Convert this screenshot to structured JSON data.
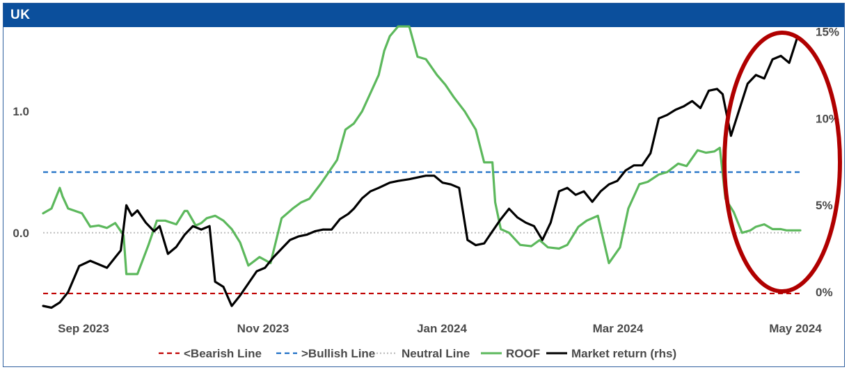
{
  "header": {
    "title": "UK"
  },
  "colors": {
    "header_bg": "#0b4f9c",
    "bearish": "#c00000",
    "bullish": "#1f6fc5",
    "neutral": "#bdbdbd",
    "roof": "#5cb85c",
    "market": "#000000",
    "highlight": "#b00000"
  },
  "chart_data": {
    "type": "line",
    "x_ticks": [
      "Sep 2023",
      "Nov 2023",
      "Jan 2024",
      "Mar 2024",
      "May 2024"
    ],
    "y_left_ticks": [
      "1.0",
      "0.0"
    ],
    "y_left_tick_values": [
      1.0,
      0.0
    ],
    "y_right_ticks": [
      "15%",
      "10%",
      "5%",
      "0%"
    ],
    "y_right_tick_values": [
      15,
      10,
      5,
      0
    ],
    "ylim_left": [
      -0.66,
      1.7
    ],
    "ylim_right": [
      -1.2,
      15.3
    ],
    "grid": false,
    "legend_position": "bottom",
    "reference_lines": [
      {
        "name": "<Bearish Line",
        "value": -0.5,
        "style": "dashed",
        "color": "#c00000"
      },
      {
        "name": ">Bullish Line",
        "value": 0.5,
        "style": "dashed",
        "color": "#1f6fc5"
      },
      {
        "name": "Neutral Line",
        "value": 0.0,
        "style": "dotted",
        "color": "#bdbdbd"
      }
    ],
    "series": [
      {
        "name": "ROOF",
        "axis": "left",
        "color": "#5cb85c",
        "x": [
          "2023-08-15",
          "2023-08-18",
          "2023-08-21",
          "2023-08-22",
          "2023-08-24",
          "2023-08-29",
          "2023-09-01",
          "2023-09-04",
          "2023-09-07",
          "2023-09-10",
          "2023-09-13",
          "2023-09-14",
          "2023-09-18",
          "2023-09-22",
          "2023-09-25",
          "2023-09-28",
          "2023-10-02",
          "2023-10-05",
          "2023-10-06",
          "2023-10-09",
          "2023-10-11",
          "2023-10-13",
          "2023-10-16",
          "2023-10-19",
          "2023-10-22",
          "2023-10-25",
          "2023-10-28",
          "2023-11-01",
          "2023-11-05",
          "2023-11-09",
          "2023-11-13",
          "2023-11-16",
          "2023-11-19",
          "2023-11-23",
          "2023-11-26",
          "2023-11-29",
          "2023-12-02",
          "2023-12-05",
          "2023-12-08",
          "2023-12-11",
          "2023-12-14",
          "2023-12-16",
          "2023-12-18",
          "2023-12-21",
          "2023-12-25",
          "2023-12-28",
          "2023-12-31",
          "2024-01-04",
          "2024-01-07",
          "2024-01-10",
          "2024-01-14",
          "2024-01-18",
          "2024-01-21",
          "2024-01-24",
          "2024-01-25",
          "2024-01-27",
          "2024-01-30",
          "2024-02-03",
          "2024-02-07",
          "2024-02-10",
          "2024-02-13",
          "2024-02-17",
          "2024-02-20",
          "2024-02-24",
          "2024-02-27",
          "2024-03-02",
          "2024-03-06",
          "2024-03-10",
          "2024-03-13",
          "2024-03-17",
          "2024-03-20",
          "2024-03-24",
          "2024-03-27",
          "2024-03-31",
          "2024-04-03",
          "2024-04-07",
          "2024-04-10",
          "2024-04-13",
          "2024-04-15",
          "2024-04-17",
          "2024-04-20",
          "2024-04-23",
          "2024-04-26",
          "2024-04-28",
          "2024-05-01",
          "2024-05-04",
          "2024-05-07",
          "2024-05-09",
          "2024-05-12",
          "2024-05-14"
        ],
        "values": [
          0.16,
          0.2,
          0.37,
          0.3,
          0.2,
          0.16,
          0.05,
          0.06,
          0.04,
          0.08,
          -0.02,
          -0.34,
          -0.34,
          -0.1,
          0.1,
          0.1,
          0.07,
          0.18,
          0.18,
          0.06,
          0.08,
          0.12,
          0.14,
          0.1,
          0.03,
          -0.08,
          -0.27,
          -0.2,
          -0.25,
          0.12,
          0.2,
          0.25,
          0.28,
          0.4,
          0.5,
          0.6,
          0.85,
          0.9,
          1.0,
          1.15,
          1.3,
          1.5,
          1.62,
          1.7,
          1.7,
          1.45,
          1.43,
          1.3,
          1.22,
          1.12,
          1.0,
          0.85,
          0.58,
          0.58,
          0.25,
          0.03,
          0.0,
          -0.1,
          -0.11,
          -0.06,
          -0.12,
          -0.13,
          -0.1,
          0.05,
          0.1,
          0.14,
          -0.25,
          -0.12,
          0.2,
          0.4,
          0.42,
          0.48,
          0.5,
          0.57,
          0.55,
          0.68,
          0.66,
          0.67,
          0.7,
          0.28,
          0.17,
          0.0,
          0.02,
          0.05,
          0.07,
          0.03,
          0.03,
          0.02,
          0.02,
          0.02
        ]
      },
      {
        "name": "Market return (rhs)",
        "axis": "right",
        "color": "#000000",
        "x": [
          "2023-08-15",
          "2023-08-18",
          "2023-08-21",
          "2023-08-24",
          "2023-08-28",
          "2023-09-01",
          "2023-09-04",
          "2023-09-07",
          "2023-09-10",
          "2023-09-12",
          "2023-09-14",
          "2023-09-16",
          "2023-09-18",
          "2023-09-21",
          "2023-09-24",
          "2023-09-26",
          "2023-09-29",
          "2023-10-02",
          "2023-10-05",
          "2023-10-08",
          "2023-10-11",
          "2023-10-14",
          "2023-10-16",
          "2023-10-19",
          "2023-10-22",
          "2023-10-25",
          "2023-10-28",
          "2023-10-31",
          "2023-11-03",
          "2023-11-06",
          "2023-11-09",
          "2023-11-12",
          "2023-11-15",
          "2023-11-18",
          "2023-11-21",
          "2023-11-24",
          "2023-11-27",
          "2023-11-30",
          "2023-12-03",
          "2023-12-05",
          "2023-12-08",
          "2023-12-11",
          "2023-12-14",
          "2023-12-18",
          "2023-12-21",
          "2023-12-25",
          "2023-12-28",
          "2023-12-31",
          "2024-01-03",
          "2024-01-06",
          "2024-01-09",
          "2024-01-12",
          "2024-01-15",
          "2024-01-18",
          "2024-01-21",
          "2024-01-24",
          "2024-01-27",
          "2024-01-30",
          "2024-02-02",
          "2024-02-05",
          "2024-02-08",
          "2024-02-11",
          "2024-02-14",
          "2024-02-17",
          "2024-02-20",
          "2024-02-23",
          "2024-02-26",
          "2024-02-29",
          "2024-03-03",
          "2024-03-06",
          "2024-03-09",
          "2024-03-12",
          "2024-03-15",
          "2024-03-18",
          "2024-03-21",
          "2024-03-24",
          "2024-03-27",
          "2024-03-30",
          "2024-04-02",
          "2024-04-05",
          "2024-04-08",
          "2024-04-11",
          "2024-04-14",
          "2024-04-16",
          "2024-04-19",
          "2024-04-22",
          "2024-04-25",
          "2024-04-28",
          "2024-05-01",
          "2024-05-04",
          "2024-05-07",
          "2024-05-10",
          "2024-05-13"
        ],
        "values": [
          -0.8,
          -0.9,
          -0.6,
          0.0,
          1.5,
          1.8,
          1.6,
          1.4,
          2.0,
          2.4,
          5.0,
          4.4,
          4.7,
          4.0,
          3.5,
          3.8,
          2.2,
          2.6,
          3.3,
          3.8,
          3.6,
          3.8,
          0.6,
          0.3,
          -0.8,
          -0.2,
          0.5,
          1.2,
          1.4,
          2.0,
          2.5,
          3.0,
          3.2,
          3.3,
          3.5,
          3.6,
          3.6,
          4.2,
          4.5,
          4.8,
          5.4,
          5.8,
          6.0,
          6.3,
          6.4,
          6.5,
          6.6,
          6.7,
          6.7,
          6.3,
          6.2,
          6.0,
          3.0,
          2.7,
          2.8,
          3.5,
          4.2,
          4.8,
          4.3,
          4.0,
          3.8,
          3.0,
          4.0,
          5.8,
          6.0,
          5.6,
          5.8,
          5.2,
          5.8,
          6.2,
          6.4,
          7.0,
          7.3,
          7.3,
          8.0,
          10.0,
          10.2,
          10.5,
          10.7,
          11.0,
          10.6,
          11.6,
          11.7,
          11.4,
          9.0,
          10.5,
          12.0,
          12.5,
          12.3,
          13.4,
          13.6,
          13.2,
          14.7
        ]
      }
    ]
  },
  "legend": [
    {
      "label": "<Bearish Line",
      "key": "bearish"
    },
    {
      "label": ">Bullish Line",
      "key": "bullish"
    },
    {
      "label": "Neutral Line",
      "key": "neutral"
    },
    {
      "label": "ROOF",
      "key": "roof"
    },
    {
      "label": "Market return (rhs)",
      "key": "market"
    }
  ]
}
